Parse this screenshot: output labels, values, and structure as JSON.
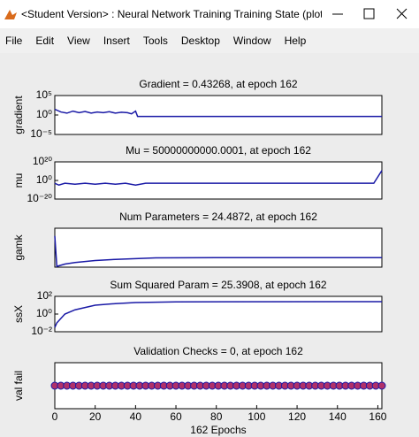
{
  "window": {
    "title": "<Student Version> : Neural Network Training Training State (plottrainstat...",
    "menu": [
      "File",
      "Edit",
      "View",
      "Insert",
      "Tools",
      "Desktop",
      "Window",
      "Help"
    ]
  },
  "chart_data": [
    {
      "type": "line",
      "title": "Gradient = 0.43268, at epoch 162",
      "y_label": "gradient",
      "yscale": "log",
      "xlim": [
        0,
        162
      ],
      "ylim": [
        1e-05,
        100000
      ],
      "yticks": [
        {
          "value": 100000,
          "label": "10⁵"
        },
        {
          "value": 1,
          "label": "10⁰"
        },
        {
          "value": 1e-05,
          "label": "10⁻⁵"
        }
      ],
      "x": [
        0,
        3,
        6,
        9,
        12,
        15,
        18,
        21,
        24,
        27,
        30,
        33,
        36,
        38,
        40,
        41,
        162
      ],
      "values": [
        30,
        6,
        3,
        10,
        4,
        8,
        3,
        6,
        4,
        7,
        3,
        5,
        4,
        2,
        10,
        0.43268,
        0.43268
      ],
      "color": "#1a1aa6"
    },
    {
      "type": "line",
      "title": "Mu = 50000000000.0001, at epoch 162",
      "y_label": "mu",
      "yscale": "log",
      "xlim": [
        0,
        162
      ],
      "ylim": [
        1e-20,
        1e+20
      ],
      "yticks": [
        {
          "value": 1e+20,
          "label": "10²⁰"
        },
        {
          "value": 1,
          "label": "10⁰"
        },
        {
          "value": 1e-20,
          "label": "10⁻²⁰"
        }
      ],
      "x": [
        0,
        2,
        5,
        10,
        15,
        20,
        25,
        30,
        35,
        40,
        45,
        60,
        100,
        158,
        162
      ],
      "values": [
        0.001,
        1e-05,
        0.001,
        0.0001,
        0.001,
        0.0001,
        0.001,
        0.0001,
        0.001,
        1e-05,
        0.001,
        0.001,
        0.001,
        0.001,
        50000000000.0001
      ],
      "color": "#1a1aa6"
    },
    {
      "type": "line",
      "title": "Num Parameters = 24.4872, at epoch 162",
      "y_label": "gamk",
      "xlim": [
        0,
        162
      ],
      "ylim": [
        0,
        100
      ],
      "x": [
        0,
        1,
        5,
        10,
        20,
        30,
        40,
        50,
        80,
        162
      ],
      "values": [
        80,
        2,
        8,
        12,
        17,
        20,
        22,
        24,
        24.4,
        24.4872
      ],
      "color": "#1a1aa6"
    },
    {
      "type": "line",
      "title": "Sum Squared Param = 25.3908, at epoch 162",
      "y_label": "ssX",
      "yscale": "log",
      "xlim": [
        0,
        162
      ],
      "ylim": [
        0.01,
        100
      ],
      "yticks": [
        {
          "value": 100,
          "label": "10²"
        },
        {
          "value": 1,
          "label": "10⁰"
        },
        {
          "value": 0.01,
          "label": "10⁻²"
        }
      ],
      "x": [
        0,
        1,
        5,
        10,
        20,
        30,
        40,
        60,
        162
      ],
      "values": [
        0.03,
        0.1,
        1,
        3,
        10,
        15,
        20,
        24,
        25.3908
      ],
      "color": "#1a1aa6"
    },
    {
      "type": "line",
      "title": "Validation Checks = 0, at epoch 162",
      "y_label": "val fail",
      "x_label": "162 Epochs",
      "xlim": [
        0,
        162
      ],
      "ylim": [
        -1,
        1
      ],
      "xticks": [
        0,
        20,
        40,
        60,
        80,
        100,
        120,
        140,
        160
      ],
      "x": [
        0,
        3,
        6,
        9,
        12,
        15,
        18,
        21,
        24,
        27,
        30,
        33,
        36,
        39,
        42,
        45,
        48,
        51,
        54,
        57,
        60,
        63,
        66,
        69,
        72,
        75,
        78,
        81,
        84,
        87,
        90,
        93,
        96,
        99,
        102,
        105,
        108,
        111,
        114,
        117,
        120,
        123,
        126,
        129,
        132,
        135,
        138,
        141,
        144,
        147,
        150,
        153,
        156,
        159,
        162
      ],
      "values": [
        0,
        0,
        0,
        0,
        0,
        0,
        0,
        0,
        0,
        0,
        0,
        0,
        0,
        0,
        0,
        0,
        0,
        0,
        0,
        0,
        0,
        0,
        0,
        0,
        0,
        0,
        0,
        0,
        0,
        0,
        0,
        0,
        0,
        0,
        0,
        0,
        0,
        0,
        0,
        0,
        0,
        0,
        0,
        0,
        0,
        0,
        0,
        0,
        0,
        0,
        0,
        0,
        0,
        0,
        0
      ],
      "color": "#1a1aa6",
      "marker_color": "#b0306a"
    }
  ]
}
